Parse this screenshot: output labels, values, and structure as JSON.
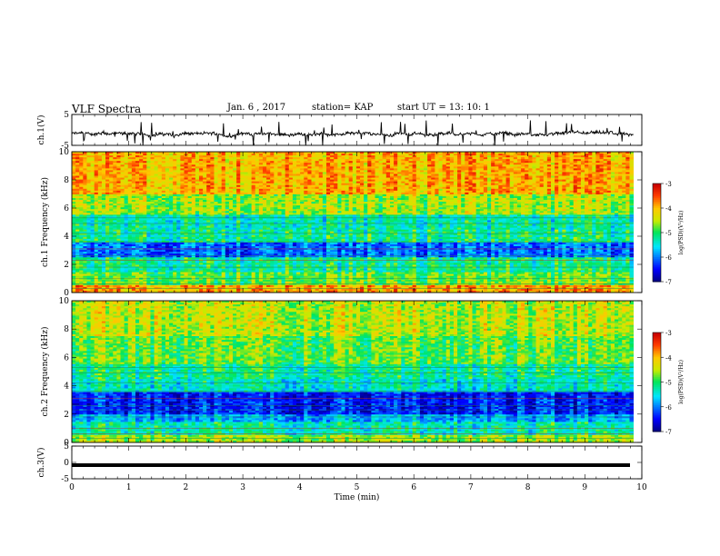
{
  "header": {
    "title": "VLF Spectra",
    "date": "Jan. 6 , 2017",
    "station": "station= KAP",
    "start": "start UT =  13: 10: 1"
  },
  "chart_data": [
    {
      "type": "line",
      "name": "ch1-waveform",
      "ylabel": "ch.1(V)",
      "ylim": [
        -5,
        5
      ],
      "yticks": [
        "5",
        "-5"
      ],
      "xlim": [
        0,
        10
      ],
      "trace_level_v": -1.3,
      "trace_extent_min": 9.85
    },
    {
      "type": "heatmap",
      "name": "ch1-spectrogram",
      "ylabel": "ch.1 Frequency (kHz)",
      "ylim": [
        0,
        10
      ],
      "yticks": [
        "0",
        "2",
        "4",
        "6",
        "8",
        "10"
      ],
      "xlim": [
        0,
        10
      ],
      "data_extent_min": 9.85,
      "colorbar": {
        "label": "log(PSD)(V²/Hz)",
        "range": [
          -7,
          -3
        ],
        "ticks": [
          "-3",
          "-4",
          "-5",
          "-6",
          "-7"
        ]
      },
      "bands": [
        {
          "f": [
            0,
            0.5
          ],
          "level": 0.78
        },
        {
          "f": [
            0.5,
            1.5
          ],
          "level": 0.55
        },
        {
          "f": [
            1.5,
            2.5
          ],
          "level": 0.45
        },
        {
          "f": [
            2.5,
            3.5
          ],
          "level": 0.22
        },
        {
          "f": [
            3.5,
            4.5
          ],
          "level": 0.45
        },
        {
          "f": [
            4.5,
            5.5
          ],
          "level": 0.42
        },
        {
          "f": [
            5.5,
            7.0
          ],
          "level": 0.6
        },
        {
          "f": [
            7.0,
            10.0
          ],
          "level": 0.76
        }
      ]
    },
    {
      "type": "heatmap",
      "name": "ch2-spectrogram",
      "ylabel": "ch.2 Frequency (kHz)",
      "ylim": [
        0,
        10
      ],
      "yticks": [
        "0",
        "2",
        "4",
        "6",
        "8",
        "10"
      ],
      "xlim": [
        0,
        10
      ],
      "data_extent_min": 9.85,
      "colorbar": {
        "label": "log(PSD)(V²/Hz)",
        "range": [
          -7,
          -3
        ],
        "ticks": [
          "-3",
          "-4",
          "-5",
          "-6",
          "-7"
        ]
      },
      "bands": [
        {
          "f": [
            0,
            0.5
          ],
          "level": 0.6
        },
        {
          "f": [
            0.5,
            1.5
          ],
          "level": 0.42
        },
        {
          "f": [
            1.5,
            2.0
          ],
          "level": 0.3
        },
        {
          "f": [
            2.0,
            3.5
          ],
          "level": 0.14
        },
        {
          "f": [
            3.5,
            4.5
          ],
          "level": 0.4
        },
        {
          "f": [
            4.5,
            5.5
          ],
          "level": 0.45
        },
        {
          "f": [
            5.5,
            7.5
          ],
          "level": 0.55
        },
        {
          "f": [
            7.5,
            10.0
          ],
          "level": 0.63
        }
      ]
    },
    {
      "type": "line",
      "name": "ch3-waveform",
      "ylabel": "ch.3(V)",
      "ylim": [
        -5,
        5
      ],
      "yticks": [
        "5",
        "0",
        "-5"
      ],
      "xlim": [
        0,
        10
      ],
      "trace_level_v": 0,
      "xlabel": "Time (min)",
      "xticks": [
        "0",
        "1",
        "2",
        "3",
        "4",
        "5",
        "6",
        "7",
        "8",
        "9",
        "10"
      ]
    }
  ]
}
